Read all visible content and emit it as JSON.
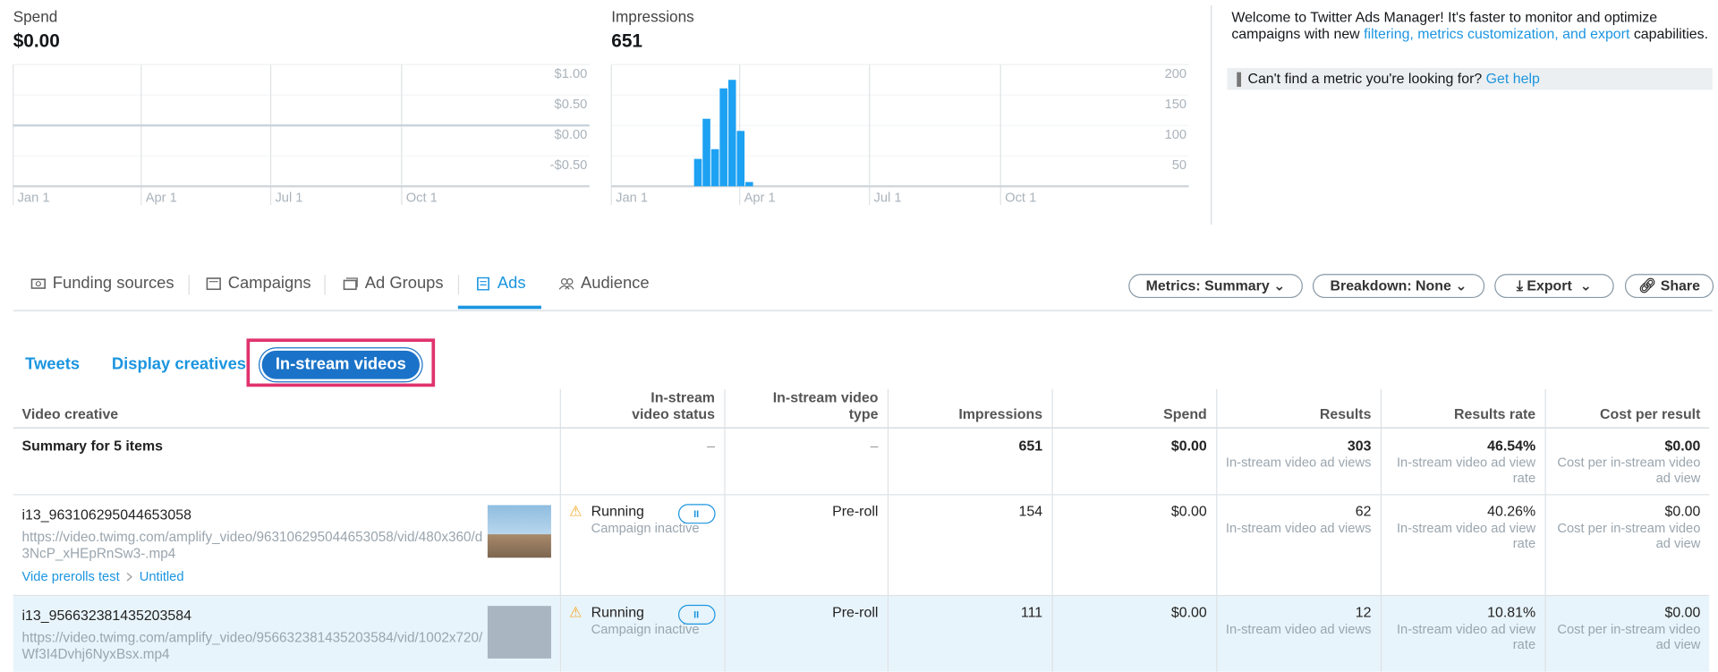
{
  "chart_data": [
    {
      "type": "line",
      "title": "Spend",
      "total": "$0.00",
      "color": "#c9d3db",
      "x": [
        0,
        405
      ],
      "values": [
        0,
        0
      ],
      "xlim": [
        0,
        405
      ],
      "xticks": [
        {
          "value": 0,
          "label": "Jan 1"
        },
        {
          "value": 90,
          "label": "Apr 1"
        },
        {
          "value": 181,
          "label": "Jul 1"
        },
        {
          "value": 273,
          "label": "Oct 1"
        }
      ],
      "ylim": [
        -1,
        1
      ],
      "yticks": [
        {
          "value": 1,
          "label": "$1.00"
        },
        {
          "value": 0.5,
          "label": "$0.50"
        },
        {
          "value": 0,
          "label": "$0.00"
        },
        {
          "value": -0.5,
          "label": "-$0.50"
        }
      ],
      "grid": true
    },
    {
      "type": "bar",
      "title": "Impressions",
      "total": "651",
      "color": "#1da1f2",
      "x": [
        58,
        64,
        70,
        76,
        82,
        88,
        94
      ],
      "values": [
        45,
        111,
        61,
        161,
        175,
        91,
        7
      ],
      "xlim": [
        0,
        405
      ],
      "xticks": [
        {
          "value": 0,
          "label": "Jan 1"
        },
        {
          "value": 90,
          "label": "Apr 1"
        },
        {
          "value": 181,
          "label": "Jul 1"
        },
        {
          "value": 273,
          "label": "Oct 1"
        }
      ],
      "ylim": [
        0,
        200
      ],
      "yticks": [
        200,
        150,
        100,
        50
      ],
      "grid": true
    }
  ],
  "notice": {
    "text": "Welcome to Twitter Ads Manager! It's faster to monitor and optimize campaigns with new",
    "link": "filtering, metrics customization, and export",
    "text_end": "capabilities.",
    "help_text": "Can't find a metric you're looking for?",
    "help_link": "Get help"
  },
  "tabs": [
    "Funding sources",
    "Campaigns",
    "Ad Groups",
    "Ads",
    "Audience"
  ],
  "buttons": [
    "Metrics: Summary",
    "Breakdown: None",
    "Export",
    "Share"
  ],
  "subtabs": [
    "Tweets",
    "Display creatives",
    "In-stream videos"
  ],
  "table": {
    "columns": [
      "Video creative",
      "In-stream video status",
      "In-stream video type",
      "Impressions",
      "Spend",
      "Results",
      "Results rate",
      "Cost per result"
    ],
    "summary": {
      "label": "Summary for 5 items",
      "status": "–",
      "type": "–",
      "impressions": "651",
      "spend": "$0.00",
      "results": "303",
      "results_note": "In-stream video ad views",
      "rate": "46.54%",
      "rate_note": "In-stream video ad view rate",
      "cost": "$0.00",
      "cost_note": "Cost per in-stream video ad view"
    },
    "rows": [
      {
        "name": "i13_963106295044653058",
        "url": "https://video.twimg.com/amplify_video/963106295044653058/vid/480x360/d3NcP_xHEpRnSw3-.mp4",
        "campaign": "Vide prerolls test",
        "ad_group": "Untitled",
        "status": "Running",
        "status_note": "Campaign inactive",
        "type": "Pre-roll",
        "impressions": "154",
        "spend": "$0.00",
        "results": "62",
        "results_note": "In-stream video ad views",
        "rate": "40.26%",
        "rate_note": "In-stream video ad view rate",
        "cost": "$0.00",
        "cost_note": "Cost per in-stream video ad view"
      },
      {
        "name": "i13_956632381435203584",
        "url": "https://video.twimg.com/amplify_video/956632381435203584/vid/1002x720/Wf3I4Dvhj6NyxBsx.mp4",
        "status": "Running",
        "status_note": "Campaign inactive",
        "type": "Pre-roll",
        "impressions": "111",
        "spend": "$0.00",
        "results": "12",
        "results_note": "In-stream video ad views",
        "rate": "10.81%",
        "rate_note": "In-stream video ad view rate",
        "cost": "$0.00",
        "cost_note": "Cost per in-stream video ad view"
      }
    ]
  }
}
